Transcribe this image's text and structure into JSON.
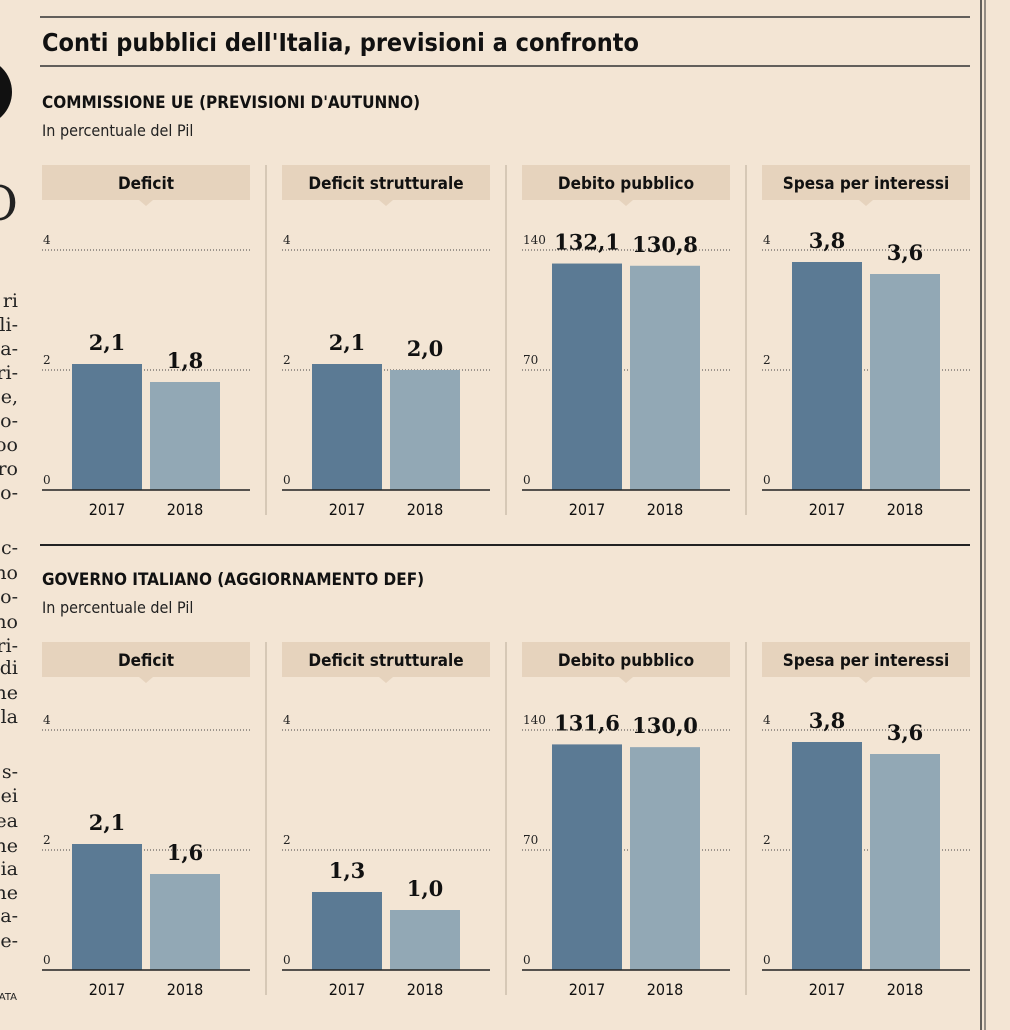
{
  "title": "Conti pubblici dell'Italia, previsioni a confronto",
  "sections": [
    {
      "heading": "COMMISSIONE UE (PREVISIONI D'AUTUNNO)",
      "subheading": "In percentuale del Pil"
    },
    {
      "heading": "GOVERNO ITALIANO (AGGIORNAMENTO DEF)",
      "subheading": "In percentuale del Pil"
    }
  ],
  "margin_text": [
    "O",
    "ri",
    "li-",
    "a-",
    "ri-",
    "e,",
    "o-",
    "oo",
    "ro",
    "o-",
    "c-",
    "no",
    "o-",
    "no",
    "ri-",
    "di",
    "ne",
    "la",
    "s-",
    "ei",
    "ea",
    "ne",
    "ia",
    "ne",
    "a-",
    "e-",
    "ATA"
  ],
  "chart_data": [
    {
      "type": "bar",
      "title": "Deficit",
      "categories": [
        "2017",
        "2018"
      ],
      "values": [
        2.1,
        1.8
      ],
      "value_labels": [
        "2,1",
        "1,8"
      ],
      "colors": [
        "#5b7a94",
        "#92a8b5"
      ],
      "ylim": [
        0,
        4
      ],
      "yticks": [
        0,
        2,
        4
      ],
      "grid": true
    },
    {
      "type": "bar",
      "title": "Deficit strutturale",
      "categories": [
        "2017",
        "2018"
      ],
      "values": [
        2.1,
        2.0
      ],
      "value_labels": [
        "2,1",
        "2,0"
      ],
      "colors": [
        "#5b7a94",
        "#92a8b5"
      ],
      "ylim": [
        0,
        4
      ],
      "yticks": [
        0,
        2,
        4
      ],
      "grid": true
    },
    {
      "type": "bar",
      "title": "Debito pubblico",
      "categories": [
        "2017",
        "2018"
      ],
      "values": [
        132.1,
        130.8
      ],
      "value_labels": [
        "132,1",
        "130,8"
      ],
      "colors": [
        "#5b7a94",
        "#92a8b5"
      ],
      "ylim": [
        0,
        140
      ],
      "yticks": [
        0,
        70,
        140
      ],
      "grid": true
    },
    {
      "type": "bar",
      "title": "Spesa per interessi",
      "categories": [
        "2017",
        "2018"
      ],
      "values": [
        3.8,
        3.6
      ],
      "value_labels": [
        "3,8",
        "3,6"
      ],
      "colors": [
        "#5b7a94",
        "#92a8b5"
      ],
      "ylim": [
        0,
        4
      ],
      "yticks": [
        0,
        2,
        4
      ],
      "grid": true
    },
    {
      "type": "bar",
      "title": "Deficit",
      "categories": [
        "2017",
        "2018"
      ],
      "values": [
        2.1,
        1.6
      ],
      "value_labels": [
        "2,1",
        "1,6"
      ],
      "colors": [
        "#5b7a94",
        "#92a8b5"
      ],
      "ylim": [
        0,
        4
      ],
      "yticks": [
        0,
        2,
        4
      ],
      "grid": true
    },
    {
      "type": "bar",
      "title": "Deficit strutturale",
      "categories": [
        "2017",
        "2018"
      ],
      "values": [
        1.3,
        1.0
      ],
      "value_labels": [
        "1,3",
        "1,0"
      ],
      "colors": [
        "#5b7a94",
        "#92a8b5"
      ],
      "ylim": [
        0,
        4
      ],
      "yticks": [
        0,
        2,
        4
      ],
      "grid": true
    },
    {
      "type": "bar",
      "title": "Debito pubblico",
      "categories": [
        "2017",
        "2018"
      ],
      "values": [
        131.6,
        130.0
      ],
      "value_labels": [
        "131,6",
        "130,0"
      ],
      "colors": [
        "#5b7a94",
        "#92a8b5"
      ],
      "ylim": [
        0,
        140
      ],
      "yticks": [
        0,
        70,
        140
      ],
      "grid": true
    },
    {
      "type": "bar",
      "title": "Spesa per interessi",
      "categories": [
        "2017",
        "2018"
      ],
      "values": [
        3.8,
        3.6
      ],
      "value_labels": [
        "3,8",
        "3,6"
      ],
      "colors": [
        "#5b7a94",
        "#92a8b5"
      ],
      "ylim": [
        0,
        4
      ],
      "yticks": [
        0,
        2,
        4
      ],
      "grid": true
    }
  ]
}
